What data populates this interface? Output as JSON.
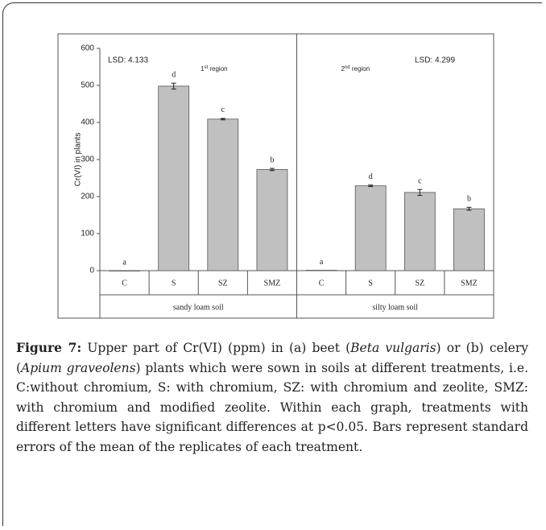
{
  "chart_data": {
    "type": "bar",
    "y_label": "Cr(VI) in plants",
    "ylim": [
      0,
      600
    ],
    "yticks": [
      0,
      100,
      200,
      300,
      400,
      500,
      600
    ],
    "color": "#c0c0c0",
    "groups": [
      {
        "name": "sandy loam soil",
        "lsd": "LSD: 4.133",
        "region": {
          "number": "1",
          "suffix": "st",
          "word": "region"
        },
        "categories": [
          "C",
          "S",
          "SZ",
          "SMZ"
        ],
        "values": [
          0,
          498,
          409,
          273
        ],
        "errors": [
          0,
          8,
          2,
          3
        ],
        "letters": [
          "a",
          "d",
          "c",
          "b"
        ]
      },
      {
        "name": "silty loam soil",
        "lsd": "LSD: 4.299",
        "region": {
          "number": "2",
          "suffix": "nd",
          "word": "region"
        },
        "categories": [
          "C",
          "S",
          "SZ",
          "SMZ"
        ],
        "values": [
          1,
          229,
          211,
          167
        ],
        "errors": [
          0,
          2,
          8,
          4
        ],
        "letters": [
          "a",
          "d",
          "c",
          "b"
        ]
      }
    ]
  },
  "caption": {
    "label": "Figure 7:",
    "parts": [
      {
        "text": "Upper part of Cr(VI) (ppm) in (a) beet (",
        "italic": false
      },
      {
        "text": "Beta vulgaris",
        "italic": true
      },
      {
        "text": ") or (b) celery (",
        "italic": false
      },
      {
        "text": "Apium graveolens",
        "italic": true
      },
      {
        "text": ") plants which were sown in soils at different treatments, i.e. C:without chromium, S: with chromium, SZ: with chromium and zeolite, SMZ: with chromium and modified zeolite. Within each graph, treatments with different letters have significant differences at p<0.05. Bars represent standard errors of the mean of the replicates of each treatment.",
        "italic": false
      }
    ]
  }
}
